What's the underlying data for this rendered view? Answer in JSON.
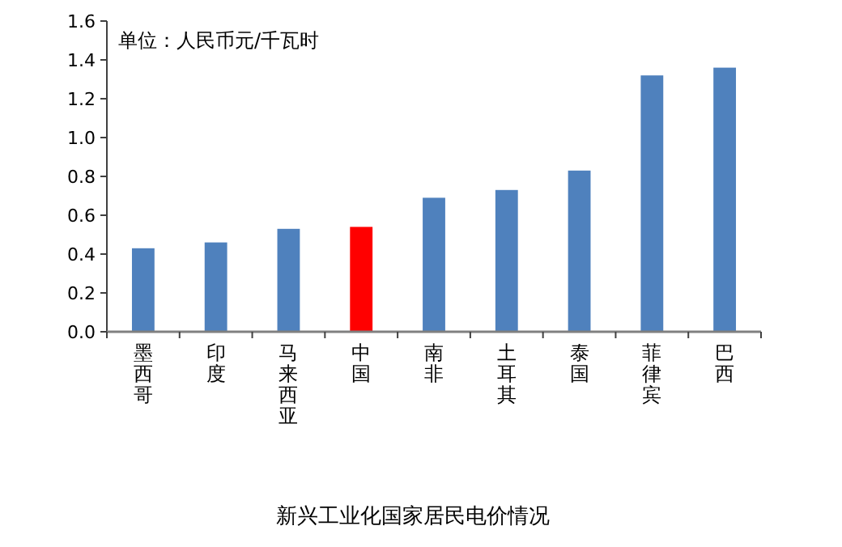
{
  "chart_data": {
    "type": "bar",
    "title": "新兴工业化国家居民电价情况",
    "annotations": [
      "单位：人民币元/千瓦时"
    ],
    "categories": [
      "墨西哥",
      "印度",
      "马来西亚",
      "中国",
      "南非",
      "土耳其",
      "泰国",
      "菲律宾",
      "巴西"
    ],
    "values": [
      0.43,
      0.46,
      0.53,
      0.54,
      0.69,
      0.73,
      0.83,
      1.32,
      1.36
    ],
    "colors": [
      "#4f81bd",
      "#4f81bd",
      "#4f81bd",
      "#ff0000",
      "#4f81bd",
      "#4f81bd",
      "#4f81bd",
      "#4f81bd",
      "#4f81bd"
    ],
    "ylim": [
      0,
      1.6
    ],
    "yticks": [
      {
        "value": 0,
        "label": "0.0"
      },
      {
        "value": 0.2,
        "label": "0.2"
      },
      {
        "value": 0.4,
        "label": "0.4"
      },
      {
        "value": 0.6,
        "label": "0.6"
      },
      {
        "value": 0.8,
        "label": "0.8"
      },
      {
        "value": 1.0,
        "label": "1.0"
      },
      {
        "value": 1.2,
        "label": "1.2"
      },
      {
        "value": 1.4,
        "label": "1.4"
      },
      {
        "value": 1.6,
        "label": "1.6"
      }
    ],
    "grid": false
  }
}
